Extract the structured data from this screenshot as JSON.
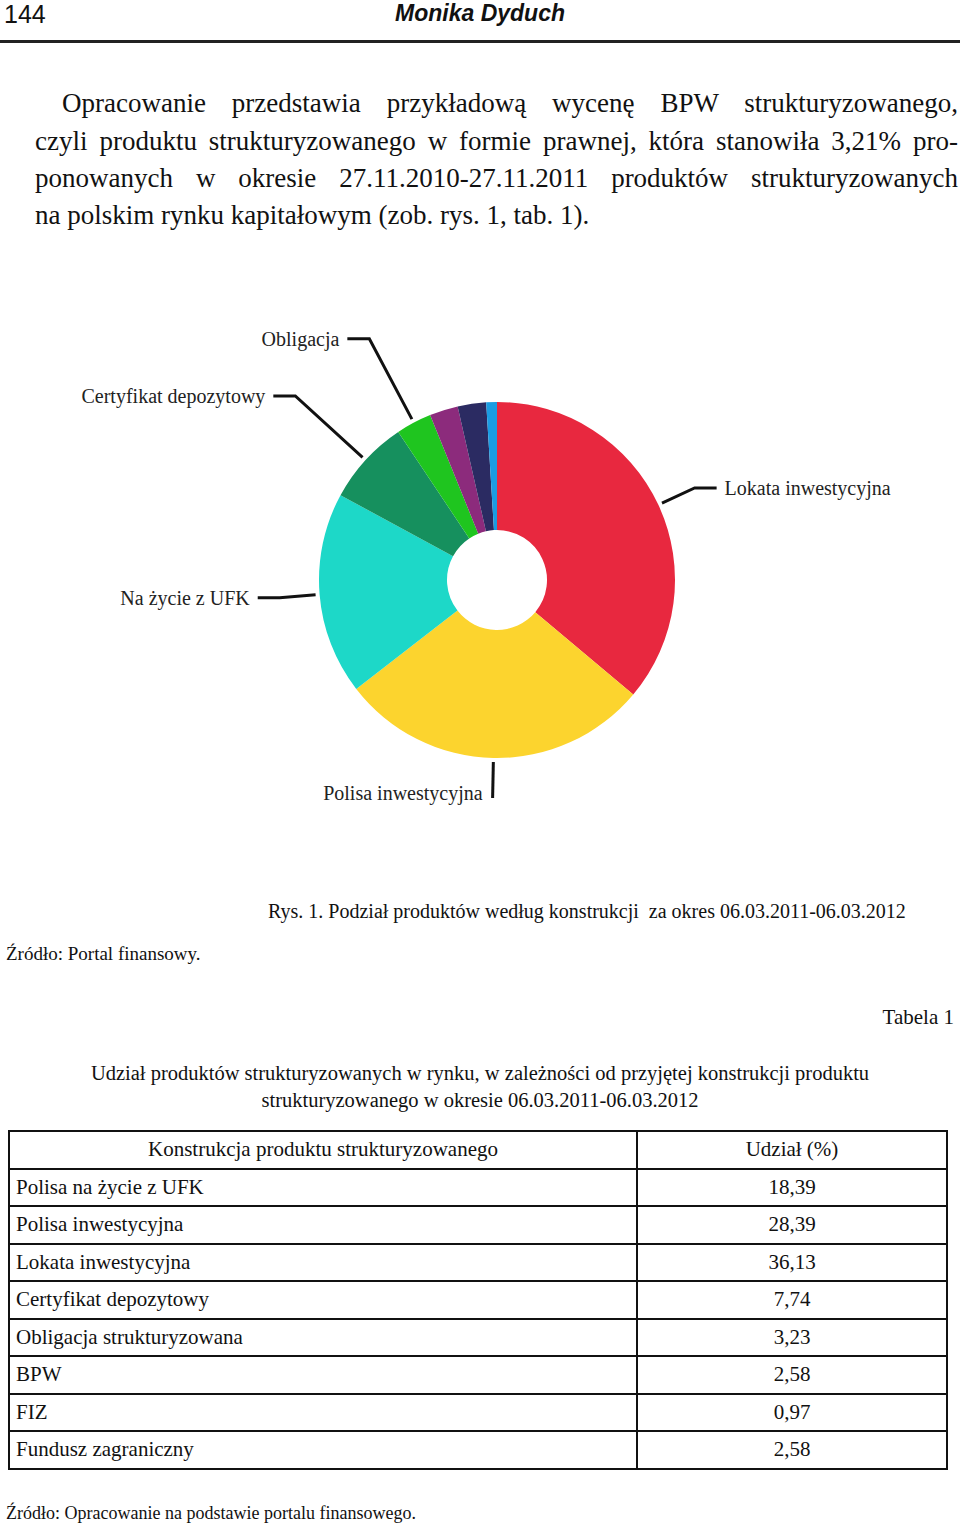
{
  "header": {
    "page_number": "144",
    "author": "Monika Dyduch"
  },
  "paragraph": {
    "lines": [
      "Opracowanie przedstawia przykładową wycenę BPW strukturyzowanego,",
      "czyli produktu strukturyzowanego w formie prawnej, która stanowiła 3,21% pro-",
      "ponowanych w okresie 27.11.2010-27.11.2011 produktów strukturyzowanych",
      "na polskim rynku kapitałowym (zob. rys. 1, tab. 1)."
    ]
  },
  "chart_data": {
    "type": "pie",
    "categories": [
      "Lokata inwestycyjna",
      "Polisa inwestycyjna",
      "Na życie z UFK",
      "Certyfikat depozytowy",
      "Obligacja",
      null,
      null,
      null
    ],
    "values": [
      36.13,
      28.39,
      18.39,
      7.74,
      3.23,
      2.58,
      2.58,
      0.97
    ],
    "colors": [
      "#e8283f",
      "#fcd42e",
      "#1dd8c8",
      "#16905e",
      "#1fc51f",
      "#8c2b7c",
      "#2b2b62",
      "#1b9ce2"
    ],
    "data_labels": false
  },
  "figure": {
    "caption": "Rys. 1. Podział produktów według konstrukcji  za okres 06.03.2011-06.03.2012",
    "source": "Źródło: Portal finansowy."
  },
  "table": {
    "label": "Tabela 1",
    "title": "Udział produktów strukturyzowanych w rynku, w zależności od przyjętej konstrukcji produktu strukturyzowanego w okresie 06.03.2011-06.03.2012",
    "header": [
      "Konstrukcja produktu strukturyzowanego",
      "Udział (%)"
    ],
    "rows": [
      [
        "Polisa na życie z UFK",
        "18,39"
      ],
      [
        "Polisa inwestycyjna",
        "28,39"
      ],
      [
        "Lokata inwestycyjna",
        "36,13"
      ],
      [
        "Certyfikat depozytowy",
        "7,74"
      ],
      [
        "Obligacja strukturyzowana",
        "3,23"
      ],
      [
        "BPW",
        "2,58"
      ],
      [
        "FIZ",
        "0,97"
      ],
      [
        "Fundusz zagraniczny",
        "2,58"
      ]
    ],
    "source": "Źródło: Opracowanie na podstawie portalu finansowego."
  }
}
